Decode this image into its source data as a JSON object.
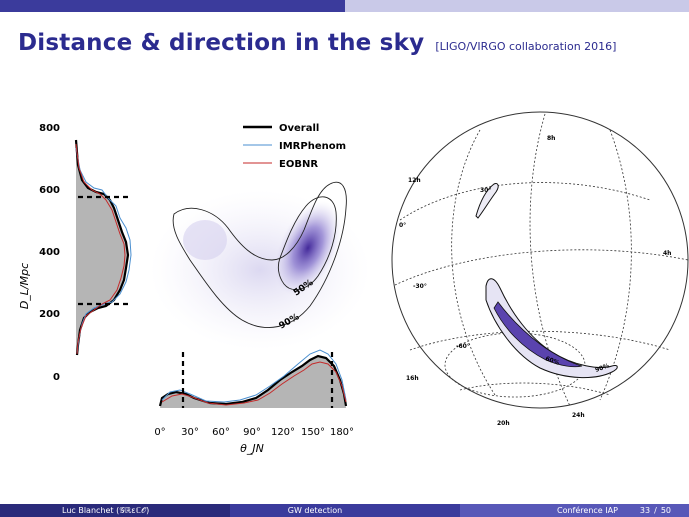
{
  "slide": {
    "title": "Distance & direction in the sky",
    "source": "[LIGO/VIRGO collaboration 2016]"
  },
  "figure": {
    "y_axis_label": "D_L/Mpc",
    "y_ticks": [
      "800",
      "600",
      "400",
      "200",
      "0"
    ],
    "x_axis_label": "θ_JN",
    "x_ticks": [
      "0°",
      "30°",
      "60°",
      "90°",
      "120°",
      "150°",
      "180°"
    ],
    "legend": [
      "Overall",
      "IMRPhenom",
      "EOBNR"
    ],
    "contour_labels": [
      "50%",
      "90%"
    ],
    "skymap_labels": [
      "8h",
      "12h",
      "0°",
      "4h",
      "30°",
      "-30°",
      "-60°",
      "16h",
      "20h",
      "24h",
      "60%",
      "90%"
    ],
    "colors": {
      "overall": "#000000",
      "imrphenom": "#4a8fd0",
      "eobnr": "#c42a2a",
      "density": "#4a2ea0"
    }
  },
  "footer": {
    "author": "Luc Blanchet (𝒢ℝεℂ𝒪)",
    "talk": "GW detection",
    "venue": "Conférence IAP",
    "page": "33",
    "total": "50"
  }
}
